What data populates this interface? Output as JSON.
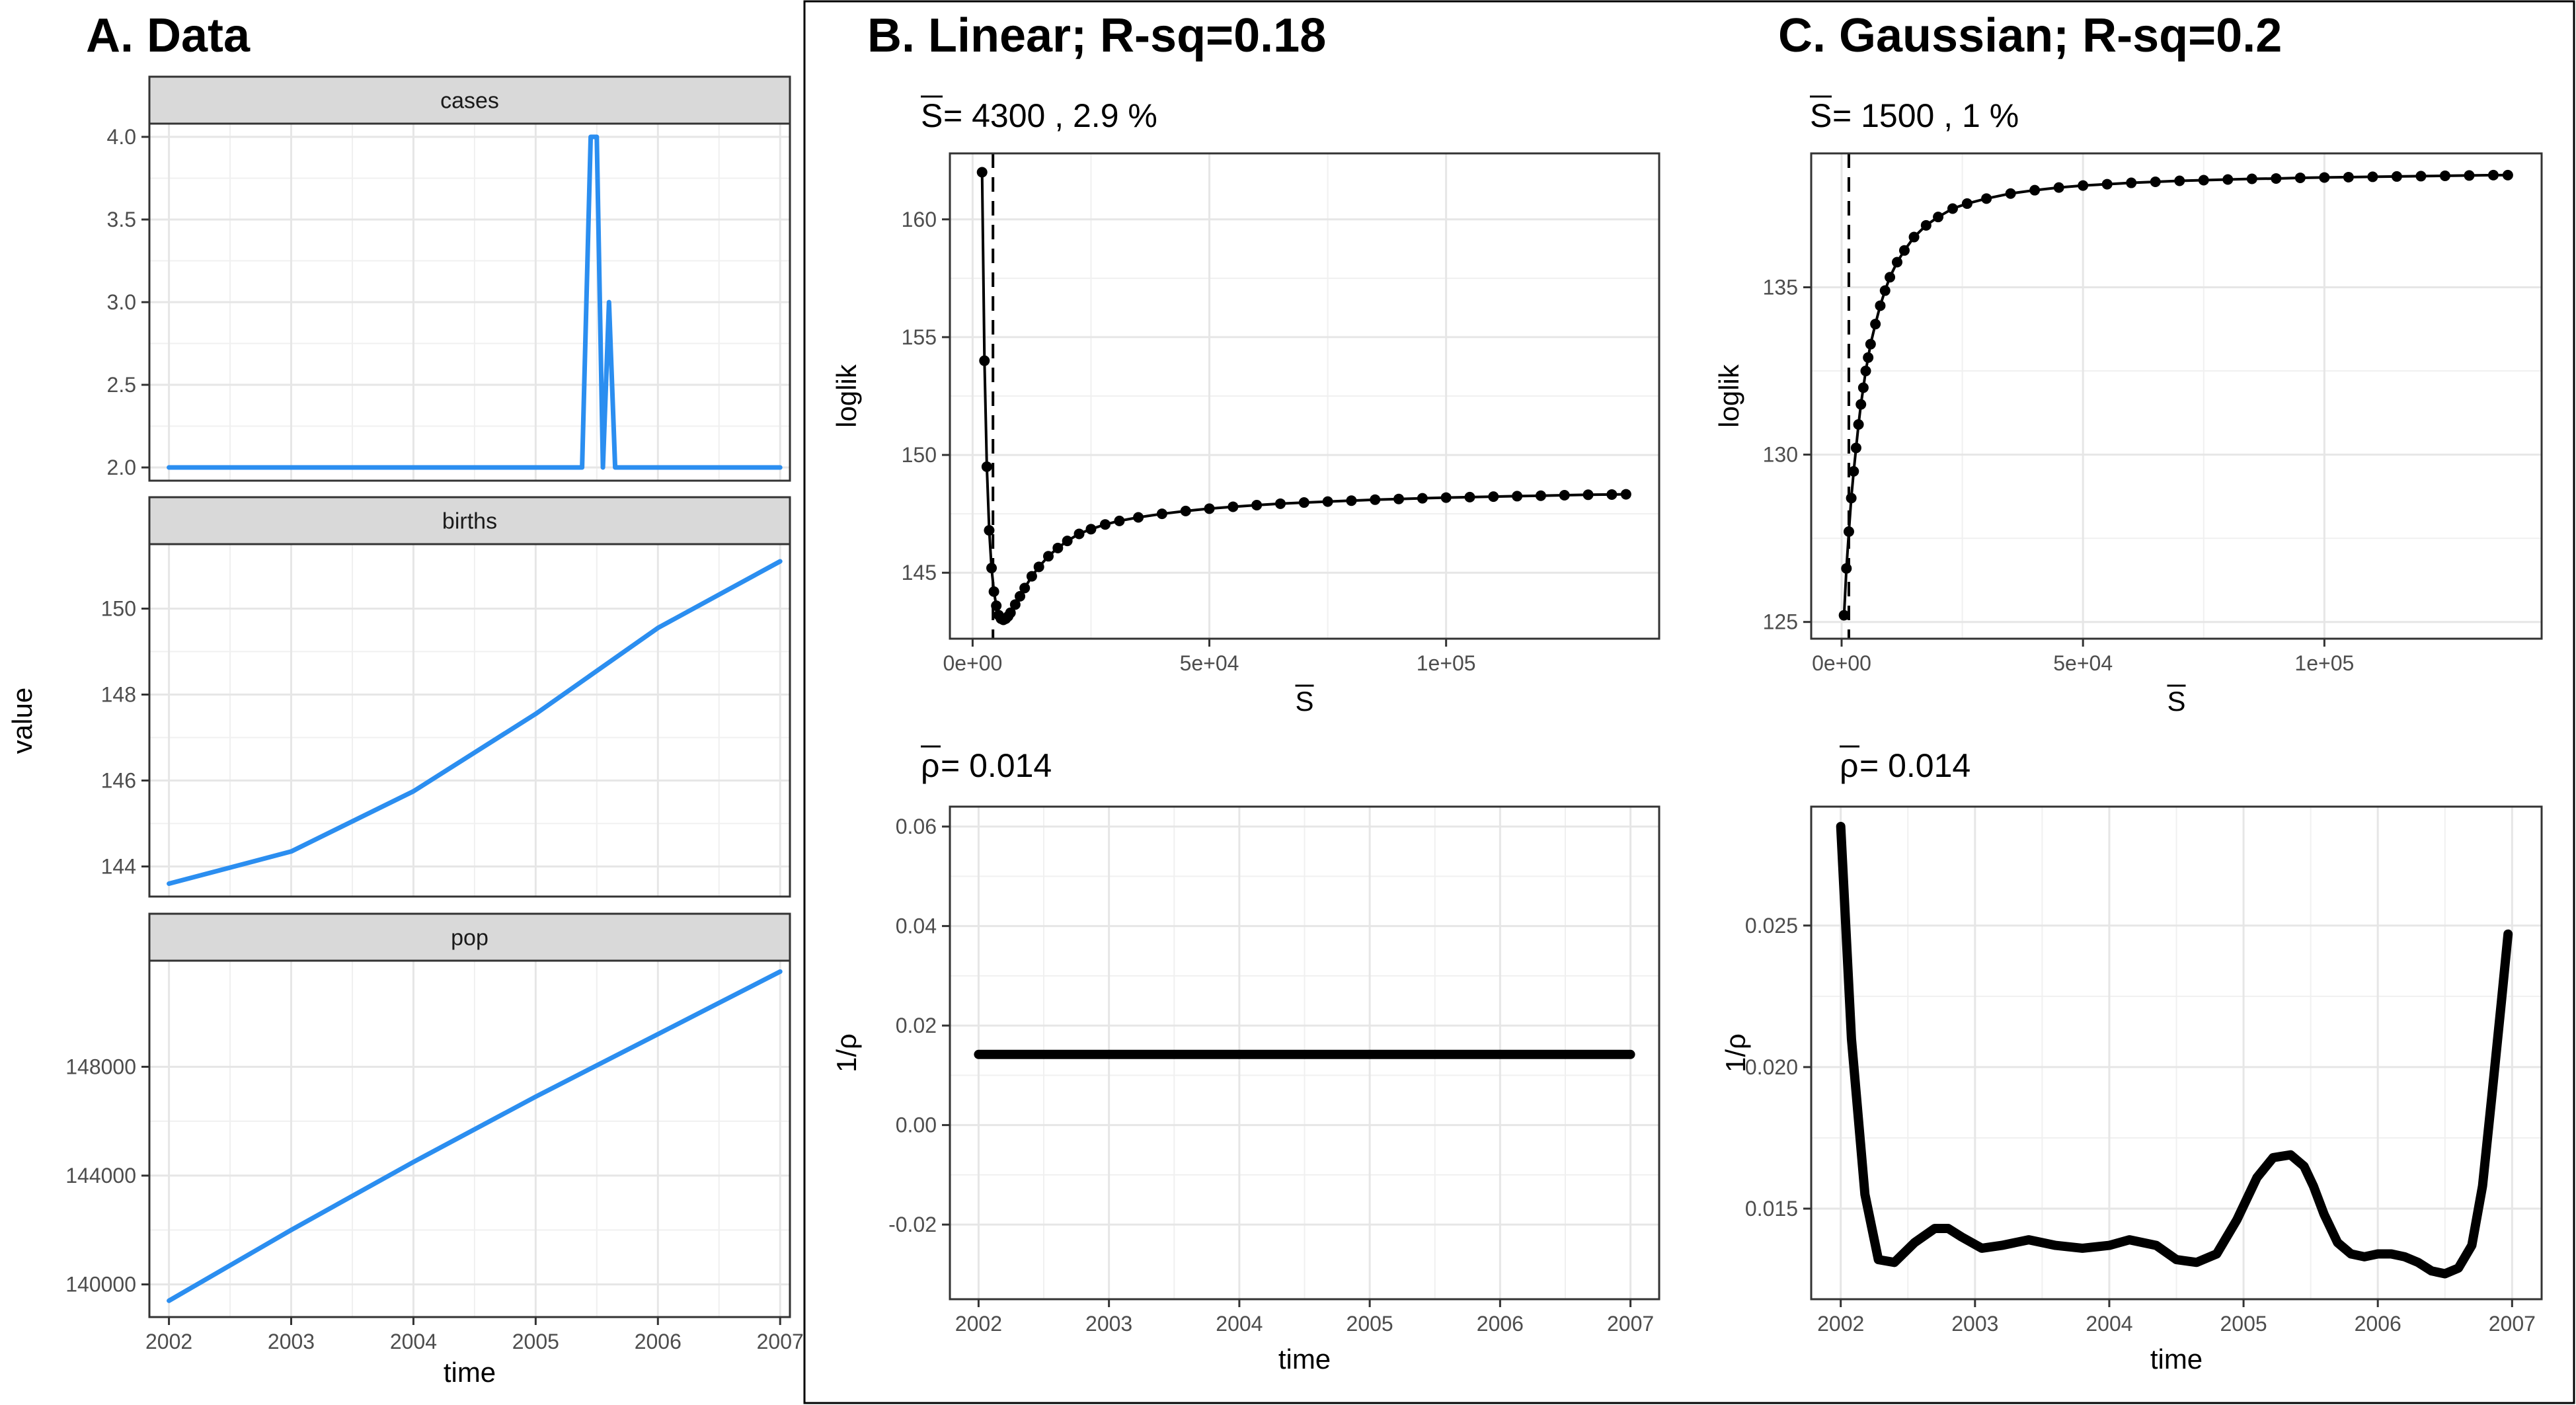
{
  "panels": {
    "a_title": "A. Data",
    "b_title": "B. Linear; R-sq=0.18",
    "c_title": "C. Gaussian; R-sq=0.2"
  },
  "chart_data": [
    {
      "id": "data_cases",
      "type": "line",
      "strip_label": "cases",
      "series_color": "#2b8ef0",
      "x": [
        2002.0,
        2005.38,
        2005.45,
        2005.5,
        2005.55,
        2005.6,
        2005.65,
        2005.7,
        2007.0
      ],
      "y": [
        2,
        2,
        4,
        4,
        2,
        3,
        2,
        2,
        2
      ],
      "xlim": [
        2001.84,
        2007.08
      ],
      "ylim": [
        1.92,
        4.08
      ],
      "yticks": [
        2.0,
        2.5,
        3.0,
        3.5,
        4.0
      ],
      "ytick_labels": [
        "2.0",
        "2.5",
        "3.0",
        "3.5",
        "4.0"
      ],
      "grid": true
    },
    {
      "id": "data_births",
      "type": "line",
      "strip_label": "births",
      "series_color": "#2b8ef0",
      "x": [
        2002.0,
        2003.0,
        2004.0,
        2005.0,
        2006.0,
        2007.0
      ],
      "y": [
        143.6,
        144.35,
        145.75,
        147.55,
        149.55,
        151.1
      ],
      "xlim": [
        2001.84,
        2007.08
      ],
      "ylim": [
        143.3,
        151.5
      ],
      "yticks": [
        144,
        146,
        148,
        150
      ],
      "ytick_labels": [
        "144",
        "146",
        "148",
        "150"
      ],
      "grid": true
    },
    {
      "id": "data_pop",
      "type": "line",
      "strip_label": "pop",
      "series_color": "#2b8ef0",
      "x": [
        2002.0,
        2003.0,
        2004.0,
        2005.0,
        2006.0,
        2007.0
      ],
      "y": [
        139400,
        142000,
        144500,
        146900,
        149200,
        151500
      ],
      "xlim": [
        2001.84,
        2007.08
      ],
      "ylim": [
        138800,
        151900
      ],
      "yticks": [
        140000,
        144000,
        148000
      ],
      "ytick_labels": [
        "140000",
        "144000",
        "148000"
      ],
      "xticks": [
        2002,
        2003,
        2004,
        2005,
        2006,
        2007
      ],
      "xtick_labels": [
        "2002",
        "2003",
        "2004",
        "2005",
        "2006",
        "2007"
      ],
      "xlabel": "time",
      "ylabel": "value",
      "grid": true
    },
    {
      "id": "linear_loglik",
      "type": "line",
      "annotation_symbol": "S",
      "annotation_text": " = 4300 , 2.9 %",
      "xlabel": "S",
      "ylabel": "loglik",
      "vline": 4300,
      "points": [
        [
          2000,
          162.0
        ],
        [
          2500,
          154.0
        ],
        [
          3000,
          149.5
        ],
        [
          3500,
          146.8
        ],
        [
          4000,
          145.2
        ],
        [
          4500,
          144.2
        ],
        [
          5000,
          143.6
        ],
        [
          5500,
          143.2
        ],
        [
          6000,
          143.05
        ],
        [
          6500,
          143.0
        ],
        [
          7000,
          143.05
        ],
        [
          7500,
          143.15
        ],
        [
          8000,
          143.3
        ],
        [
          9000,
          143.65
        ],
        [
          10000,
          144.0
        ],
        [
          11000,
          144.35
        ],
        [
          12500,
          144.85
        ],
        [
          14000,
          145.25
        ],
        [
          16000,
          145.7
        ],
        [
          18000,
          146.05
        ],
        [
          20000,
          146.35
        ],
        [
          22500,
          146.65
        ],
        [
          25000,
          146.85
        ],
        [
          28000,
          147.05
        ],
        [
          31000,
          147.2
        ],
        [
          35000,
          147.35
        ],
        [
          40000,
          147.5
        ],
        [
          45000,
          147.62
        ],
        [
          50000,
          147.72
        ],
        [
          55000,
          147.8
        ],
        [
          60000,
          147.87
        ],
        [
          65000,
          147.93
        ],
        [
          70000,
          147.98
        ],
        [
          75000,
          148.02
        ],
        [
          80000,
          148.06
        ],
        [
          85000,
          148.1
        ],
        [
          90000,
          148.13
        ],
        [
          95000,
          148.16
        ],
        [
          100000,
          148.19
        ],
        [
          105000,
          148.21
        ],
        [
          110000,
          148.23
        ],
        [
          115000,
          148.25
        ],
        [
          120000,
          148.27
        ],
        [
          125000,
          148.29
        ],
        [
          130000,
          148.31
        ],
        [
          135000,
          148.32
        ],
        [
          138000,
          148.33
        ]
      ],
      "xlim": [
        -4800,
        145000
      ],
      "ylim": [
        142.2,
        162.8
      ],
      "xticks": [
        0,
        50000,
        100000
      ],
      "xtick_labels": [
        "0e+00",
        "5e+04",
        "1e+05"
      ],
      "yticks": [
        145,
        150,
        155,
        160
      ],
      "ytick_labels": [
        "145",
        "150",
        "155",
        "160"
      ],
      "grid": true
    },
    {
      "id": "linear_rho",
      "type": "line",
      "annotation_symbol": "ρ",
      "annotation_text": " = 0.014",
      "xlabel": "time",
      "ylabel": "1/ρ",
      "x": [
        2002.0,
        2007.0
      ],
      "y": [
        0.0142,
        0.0142
      ],
      "xlim": [
        2001.78,
        2007.22
      ],
      "ylim": [
        -0.035,
        0.064
      ],
      "xticks": [
        2002,
        2003,
        2004,
        2005,
        2006,
        2007
      ],
      "xtick_labels": [
        "2002",
        "2003",
        "2004",
        "2005",
        "2006",
        "2007"
      ],
      "yticks": [
        -0.02,
        0.0,
        0.02,
        0.04,
        0.06
      ],
      "ytick_labels": [
        "-0.02",
        "0.00",
        "0.02",
        "0.04",
        "0.06"
      ],
      "grid": true
    },
    {
      "id": "gaussian_loglik",
      "type": "line",
      "annotation_symbol": "S",
      "annotation_text": " = 1500 , 1 %",
      "xlabel": "S",
      "ylabel": "loglik",
      "vline": 1500,
      "points": [
        [
          500,
          125.2
        ],
        [
          1000,
          126.6
        ],
        [
          1500,
          127.7
        ],
        [
          2000,
          128.7
        ],
        [
          2500,
          129.5
        ],
        [
          3000,
          130.2
        ],
        [
          3500,
          130.9
        ],
        [
          4000,
          131.5
        ],
        [
          4500,
          132.0
        ],
        [
          5000,
          132.5
        ],
        [
          5500,
          132.9
        ],
        [
          6000,
          133.3
        ],
        [
          7000,
          133.9
        ],
        [
          8000,
          134.45
        ],
        [
          9000,
          134.9
        ],
        [
          10000,
          135.3
        ],
        [
          11500,
          135.75
        ],
        [
          13000,
          136.1
        ],
        [
          15000,
          136.5
        ],
        [
          17500,
          136.85
        ],
        [
          20000,
          137.1
        ],
        [
          23000,
          137.35
        ],
        [
          26000,
          137.5
        ],
        [
          30000,
          137.65
        ],
        [
          35000,
          137.8
        ],
        [
          40000,
          137.9
        ],
        [
          45000,
          137.98
        ],
        [
          50000,
          138.04
        ],
        [
          55000,
          138.08
        ],
        [
          60000,
          138.12
        ],
        [
          65000,
          138.15
        ],
        [
          70000,
          138.18
        ],
        [
          75000,
          138.2
        ],
        [
          80000,
          138.22
        ],
        [
          85000,
          138.24
        ],
        [
          90000,
          138.25
        ],
        [
          95000,
          138.27
        ],
        [
          100000,
          138.28
        ],
        [
          105000,
          138.29
        ],
        [
          110000,
          138.3
        ],
        [
          115000,
          138.31
        ],
        [
          120000,
          138.32
        ],
        [
          125000,
          138.33
        ],
        [
          130000,
          138.34
        ],
        [
          135000,
          138.35
        ],
        [
          138000,
          138.35
        ]
      ],
      "xlim": [
        -6300,
        145000
      ],
      "ylim": [
        124.5,
        139.0
      ],
      "xticks": [
        0,
        50000,
        100000
      ],
      "xtick_labels": [
        "0e+00",
        "5e+04",
        "1e+05"
      ],
      "yticks": [
        125,
        130,
        135
      ],
      "ytick_labels": [
        "125",
        "130",
        "135"
      ],
      "grid": true
    },
    {
      "id": "gaussian_rho",
      "type": "line",
      "annotation_symbol": "ρ",
      "annotation_text": " = 0.014",
      "xlabel": "time",
      "ylabel": "1/ρ",
      "x": [
        2002.0,
        2002.08,
        2002.18,
        2002.28,
        2002.4,
        2002.55,
        2002.7,
        2002.8,
        2002.9,
        2003.05,
        2003.2,
        2003.4,
        2003.6,
        2003.8,
        2004.0,
        2004.15,
        2004.35,
        2004.5,
        2004.65,
        2004.8,
        2004.95,
        2005.1,
        2005.22,
        2005.35,
        2005.45,
        2005.52,
        2005.6,
        2005.7,
        2005.8,
        2005.9,
        2006.0,
        2006.1,
        2006.2,
        2006.3,
        2006.4,
        2006.5,
        2006.6,
        2006.7,
        2006.78,
        2006.85,
        2006.92,
        2006.97
      ],
      "y": [
        0.0285,
        0.021,
        0.0155,
        0.0132,
        0.0131,
        0.0138,
        0.0143,
        0.0143,
        0.014,
        0.0136,
        0.0137,
        0.0139,
        0.0137,
        0.0136,
        0.0137,
        0.0139,
        0.0137,
        0.0132,
        0.0131,
        0.0134,
        0.0146,
        0.0161,
        0.0168,
        0.0169,
        0.0165,
        0.0158,
        0.0148,
        0.0138,
        0.0134,
        0.0133,
        0.0134,
        0.0134,
        0.0133,
        0.0131,
        0.0128,
        0.0127,
        0.0129,
        0.0137,
        0.0158,
        0.019,
        0.0223,
        0.0247
      ],
      "xlim": [
        2001.78,
        2007.22
      ],
      "ylim": [
        0.0118,
        0.0292
      ],
      "xticks": [
        2002,
        2003,
        2004,
        2005,
        2006,
        2007
      ],
      "xtick_labels": [
        "2002",
        "2003",
        "2004",
        "2005",
        "2006",
        "2007"
      ],
      "yticks": [
        0.015,
        0.02,
        0.025
      ],
      "ytick_labels": [
        "0.015",
        "0.020",
        "0.025"
      ],
      "grid": true
    }
  ]
}
